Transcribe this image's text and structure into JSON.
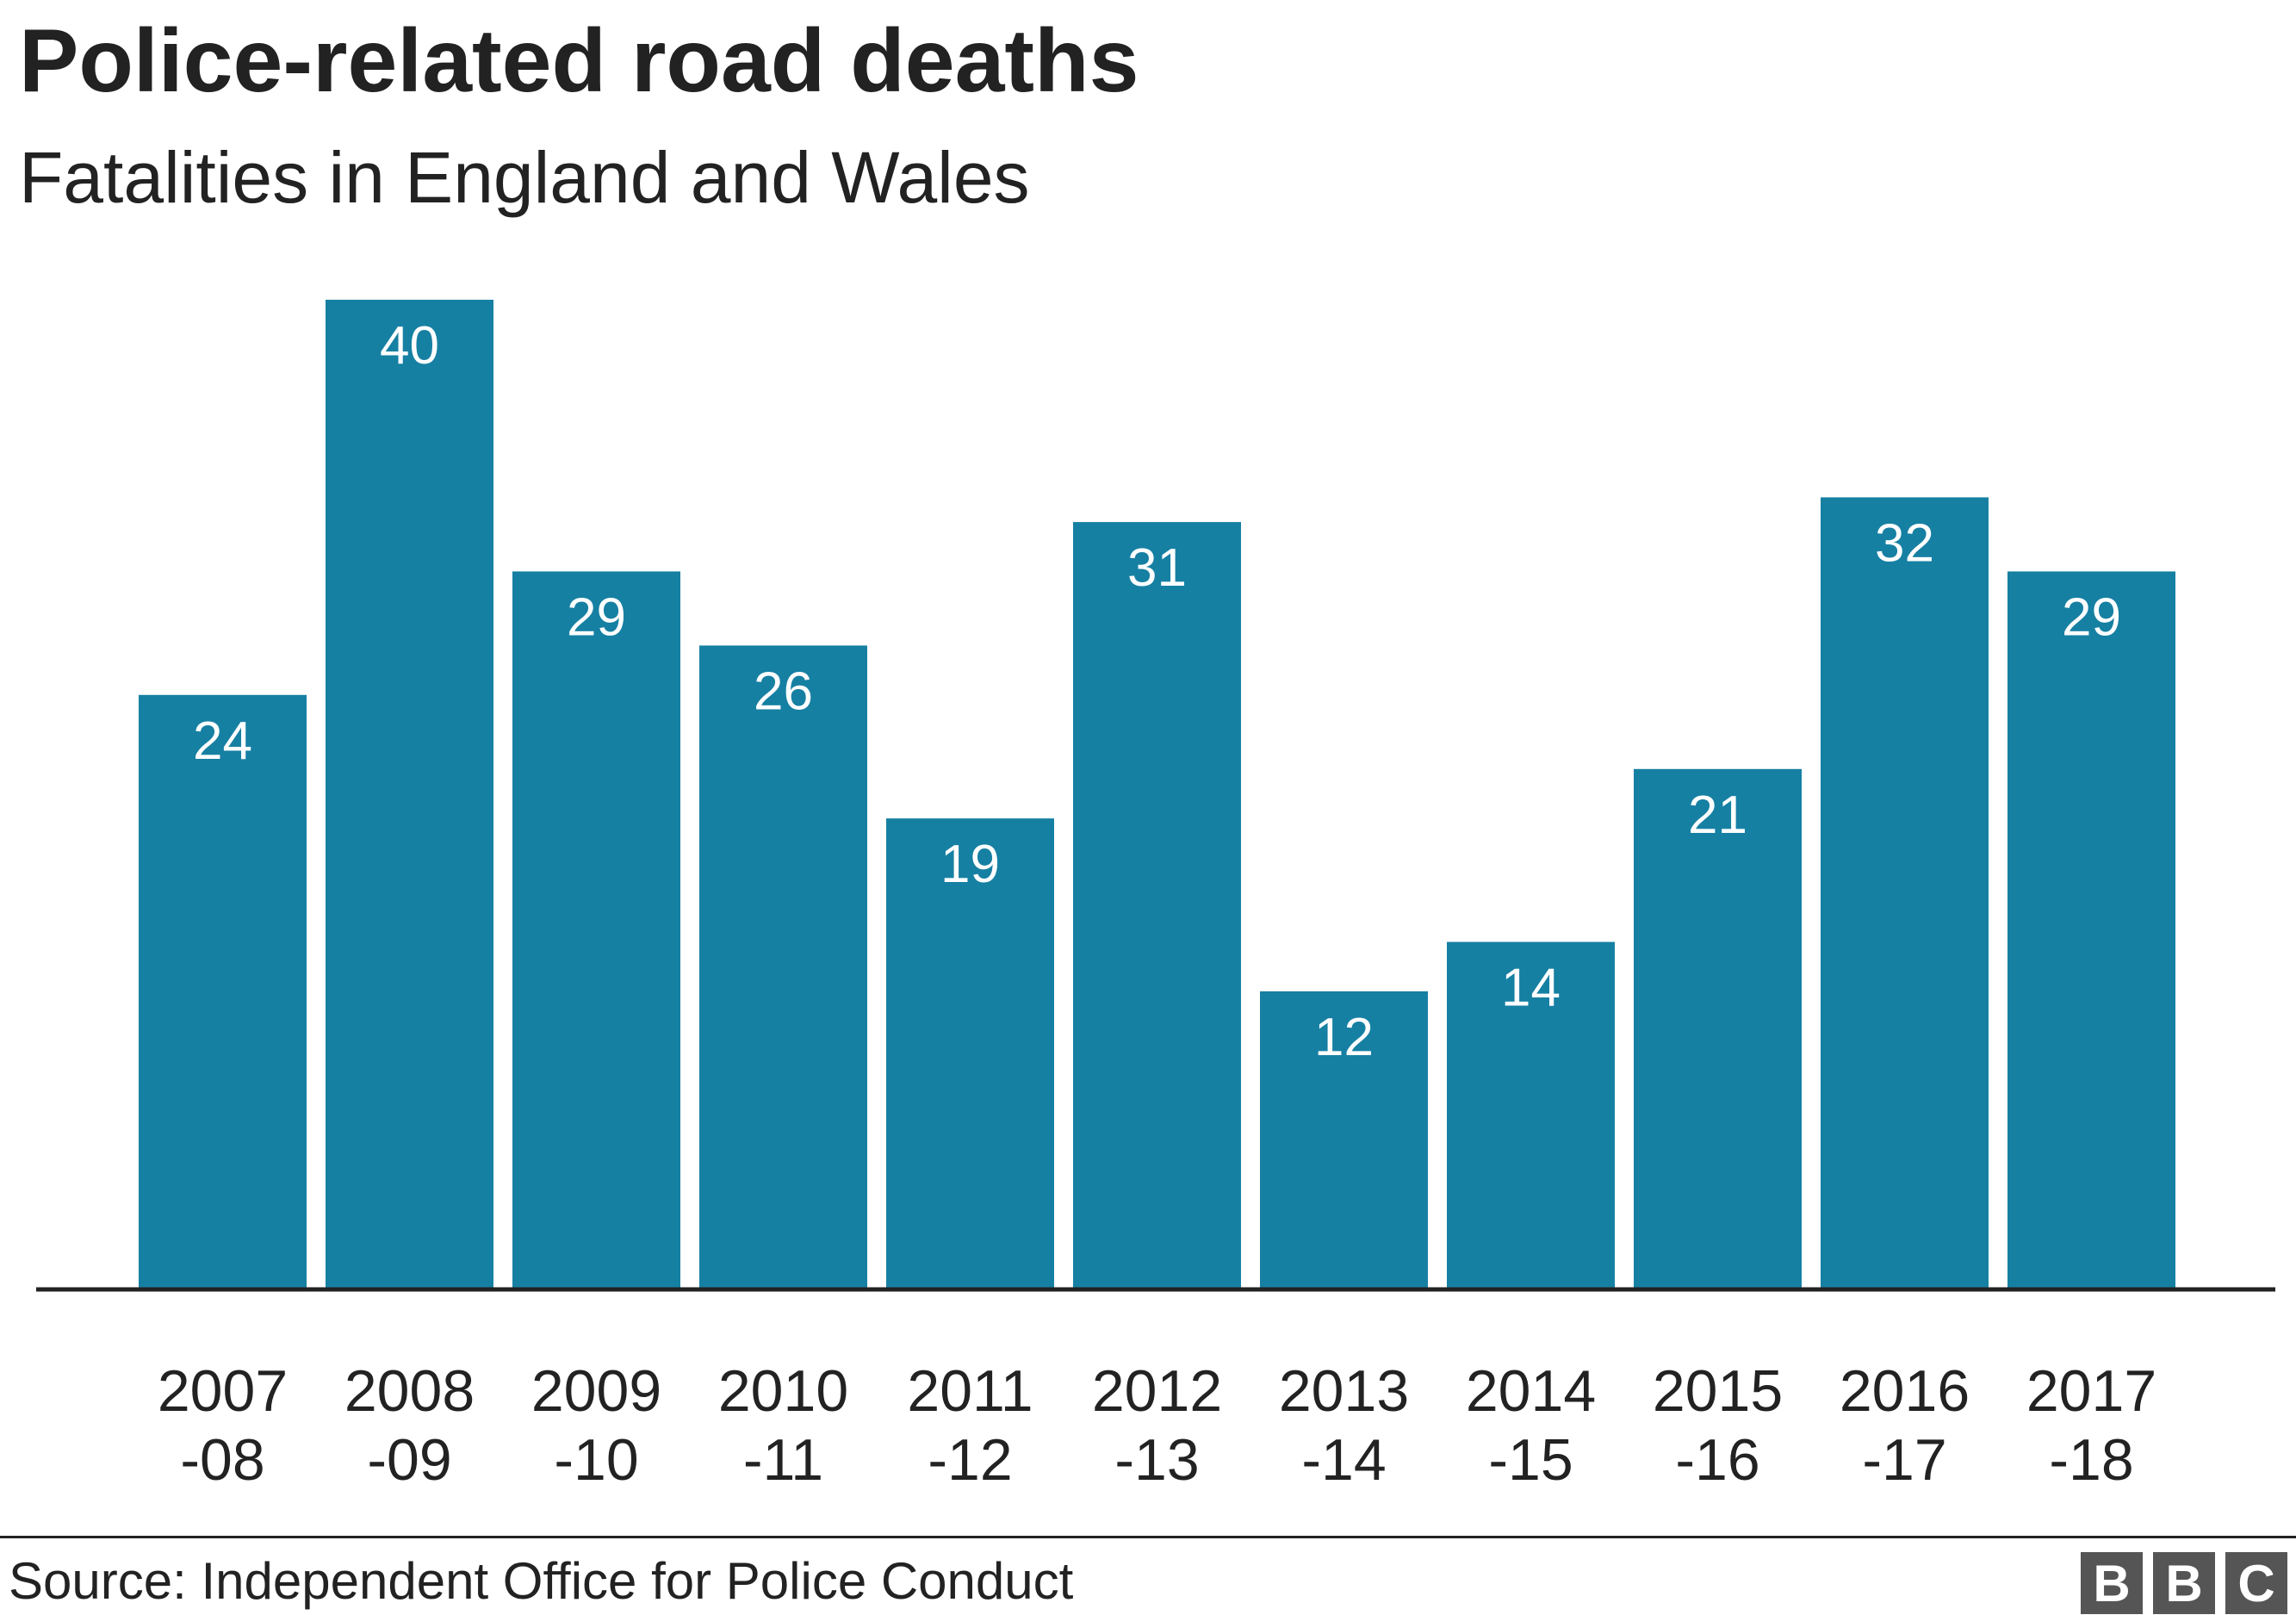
{
  "title": "Police-related road deaths",
  "subtitle": "Fatalities in England and Wales",
  "source": "Source: Independent Office for Police Conduct",
  "logo": [
    "B",
    "B",
    "C"
  ],
  "colors": {
    "bar": "#1680a3",
    "bar_label": "#ffffff",
    "text": "#222222",
    "axis": "#222222"
  },
  "chart_data": {
    "type": "bar",
    "categories": [
      [
        "2007",
        "-08"
      ],
      [
        "2008",
        "-09"
      ],
      [
        "2009",
        "-10"
      ],
      [
        "2010",
        "-11"
      ],
      [
        "2011",
        "-12"
      ],
      [
        "2012",
        "-13"
      ],
      [
        "2013",
        "-14"
      ],
      [
        "2014",
        "-15"
      ],
      [
        "2015",
        "-16"
      ],
      [
        "2016",
        "-17"
      ],
      [
        "2017",
        "-18"
      ]
    ],
    "values": [
      24,
      40,
      29,
      26,
      19,
      31,
      12,
      14,
      21,
      32,
      29
    ],
    "title": "Police-related road deaths",
    "subtitle": "Fatalities in England and Wales",
    "xlabel": "",
    "ylabel": "",
    "ylim": [
      0,
      40
    ],
    "grid": false,
    "data_labels": "inside-top"
  }
}
